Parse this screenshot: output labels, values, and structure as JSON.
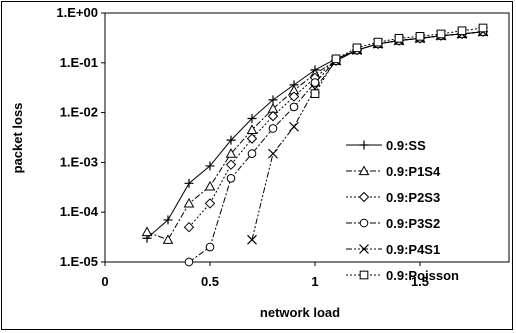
{
  "chart_data": {
    "type": "line",
    "xlabel": "network load",
    "ylabel": "packet loss",
    "xlim": [
      0,
      2
    ],
    "ylim_log10": [
      -5,
      0
    ],
    "log_y": true,
    "x_ticks": [
      {
        "value": 0,
        "label": "0"
      },
      {
        "value": 0.5,
        "label": "0.5"
      },
      {
        "value": 1,
        "label": "1"
      },
      {
        "value": 1.5,
        "label": "1.5"
      }
    ],
    "y_ticks": [
      {
        "value": 1,
        "label": "1.E+00"
      },
      {
        "value": 0.1,
        "label": "1.E-01"
      },
      {
        "value": 0.01,
        "label": "1.E-02"
      },
      {
        "value": 0.001,
        "label": "1.E-03"
      },
      {
        "value": 0.0001,
        "label": "1.E-04"
      },
      {
        "value": 1e-05,
        "label": "1.E-05"
      }
    ],
    "legend_position": "right",
    "series": [
      {
        "name": "0.9:SS",
        "marker": "plus",
        "dash": "",
        "x": [
          0.2,
          0.3,
          0.4,
          0.5,
          0.6,
          0.7,
          0.8,
          0.9,
          1.0,
          1.1,
          1.2,
          1.3,
          1.4,
          1.5,
          1.6,
          1.7,
          1.8
        ],
        "y": [
          3e-05,
          7e-05,
          0.00038,
          0.00085,
          0.0028,
          0.0076,
          0.018,
          0.036,
          0.072,
          0.12,
          0.18,
          0.24,
          0.28,
          0.31,
          0.35,
          0.38,
          0.42
        ]
      },
      {
        "name": "0.9:P1S4",
        "marker": "triangle",
        "dash": "6,2,2,2",
        "x": [
          0.2,
          0.3,
          0.4,
          0.5,
          0.6,
          0.7,
          0.8,
          0.9,
          1.0,
          1.1,
          1.2,
          1.3,
          1.4,
          1.5,
          1.6,
          1.7,
          1.8
        ],
        "y": [
          4e-05,
          2.8e-05,
          0.00015,
          0.00033,
          0.0015,
          0.0045,
          0.012,
          0.028,
          0.06,
          0.11,
          0.18,
          0.24,
          0.28,
          0.31,
          0.35,
          0.38,
          0.42
        ]
      },
      {
        "name": "0.9:P2S3",
        "marker": "diamond",
        "dash": "2,2",
        "x": [
          0.4,
          0.5,
          0.6,
          0.7,
          0.8,
          0.9,
          1.0,
          1.1,
          1.2,
          1.3,
          1.4,
          1.5,
          1.6,
          1.7,
          1.8
        ],
        "y": [
          5e-05,
          0.00015,
          0.0009,
          0.003,
          0.0085,
          0.021,
          0.05,
          0.11,
          0.18,
          0.24,
          0.28,
          0.31,
          0.35,
          0.38,
          0.42
        ]
      },
      {
        "name": "0.9:P3S2",
        "marker": "circle",
        "dash": "6,2,2,2",
        "x": [
          0.4,
          0.5,
          0.6,
          0.7,
          0.8,
          0.9,
          1.0,
          1.1,
          1.2,
          1.3,
          1.4,
          1.5,
          1.6,
          1.7,
          1.8
        ],
        "y": [
          1e-05,
          2e-05,
          0.00048,
          0.0015,
          0.0048,
          0.013,
          0.04,
          0.11,
          0.18,
          0.24,
          0.28,
          0.31,
          0.35,
          0.38,
          0.42
        ]
      },
      {
        "name": "0.9:P4S1",
        "marker": "x",
        "dash": "6,2,2,2,2,2",
        "x": [
          0.7,
          0.8,
          0.9,
          1.0,
          1.1,
          1.2,
          1.3,
          1.4,
          1.5,
          1.6,
          1.7,
          1.8
        ],
        "y": [
          2.8e-05,
          0.0015,
          0.0052,
          0.03,
          0.11,
          0.18,
          0.24,
          0.28,
          0.31,
          0.35,
          0.38,
          0.42
        ]
      },
      {
        "name": "0.9:Poisson",
        "marker": "square",
        "dash": "2,2",
        "x": [
          1.0,
          1.1,
          1.2,
          1.3,
          1.4,
          1.5,
          1.6,
          1.7,
          1.8
        ],
        "y": [
          0.024,
          0.12,
          0.2,
          0.26,
          0.31,
          0.34,
          0.38,
          0.44,
          0.5
        ]
      }
    ]
  }
}
